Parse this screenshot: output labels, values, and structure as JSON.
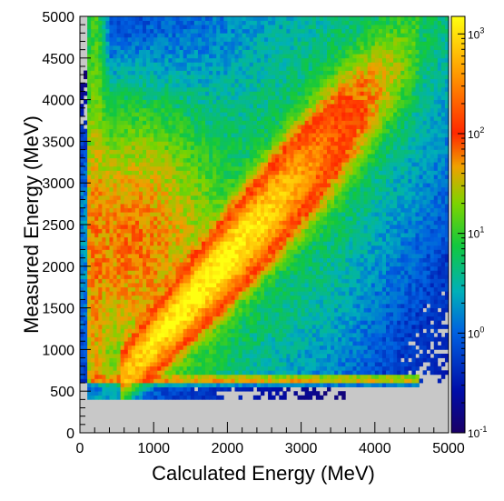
{
  "chart_data": {
    "type": "heatmap",
    "xlabel": "Calculated Energy (MeV)",
    "ylabel": "Measured Energy (MeV)",
    "xlim": [
      0,
      5000
    ],
    "ylim": [
      0,
      5000
    ],
    "x_ticks": [
      "0",
      "1000",
      "2000",
      "3000",
      "4000",
      "5000"
    ],
    "y_ticks": [
      "0",
      "500",
      "1000",
      "1500",
      "2000",
      "2500",
      "3000",
      "3500",
      "4000",
      "4500",
      "5000"
    ],
    "colorbar": {
      "scale": "log",
      "range": [
        0.1,
        1500
      ],
      "ticks": [
        {
          "value": 0.1,
          "base": "10",
          "exp": "-1"
        },
        {
          "value": 1,
          "base": "10",
          "exp": "0"
        },
        {
          "value": 10,
          "base": "10",
          "exp": "1"
        },
        {
          "value": 100,
          "base": "10",
          "exp": "2"
        },
        {
          "value": 1000,
          "base": "10",
          "exp": "3"
        }
      ]
    },
    "empty_bin_color": "#c8c8c8",
    "features": {
      "diagonal_band": {
        "x_start": 550,
        "y_start": 640,
        "x_end": 4600,
        "y_end": 4700,
        "peak_counts": 1500
      },
      "measured_threshold_y": 600,
      "calculated_threshold_x": 150,
      "low_energy_cluster": {
        "x_center": 700,
        "y_center": 2300,
        "peak_counts": 60
      }
    }
  }
}
